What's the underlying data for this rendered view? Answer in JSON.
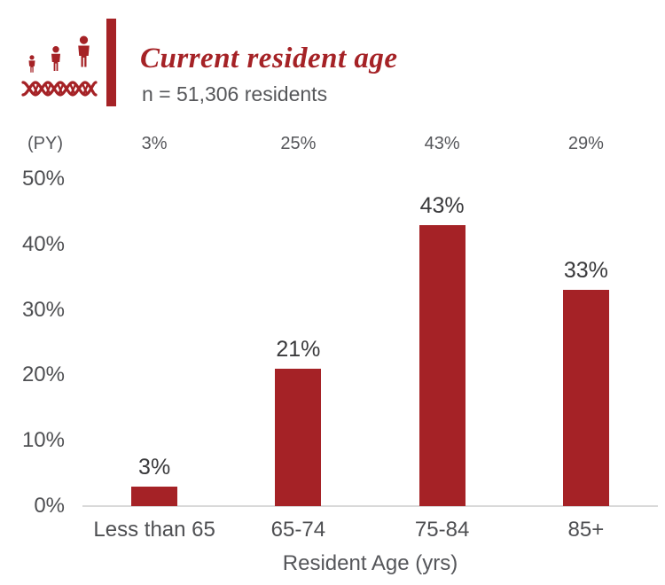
{
  "header": {
    "title": "Current resident age",
    "subtitle": "n = 51,306 residents",
    "icon": "people-growth-dna-icon"
  },
  "colors": {
    "brand_red": "#A52226",
    "axis_text": "#4E4F52",
    "data_label_text": "#3A3A3C",
    "secondary_text": "#56575A",
    "baseline": "#D9D9D9"
  },
  "chart_data": {
    "type": "bar",
    "title": "Current resident age",
    "subtitle": "n = 51,306 residents",
    "categories": [
      "Less than 65",
      "65-74",
      "75-84",
      "85+"
    ],
    "values": [
      3,
      21,
      43,
      33
    ],
    "data_labels": [
      "3%",
      "21%",
      "43%",
      "33%"
    ],
    "py_label": "(PY)",
    "py_values": [
      "3%",
      "25%",
      "43%",
      "29%"
    ],
    "xlabel": "Resident Age (yrs)",
    "ylabel": "",
    "ylim": [
      0,
      50
    ],
    "yticks": [
      0,
      10,
      20,
      30,
      40,
      50
    ],
    "ytick_labels": [
      "0%",
      "10%",
      "20%",
      "30%",
      "40%",
      "50%"
    ],
    "bar_color": "#A52226",
    "grid": false,
    "legend": false
  }
}
